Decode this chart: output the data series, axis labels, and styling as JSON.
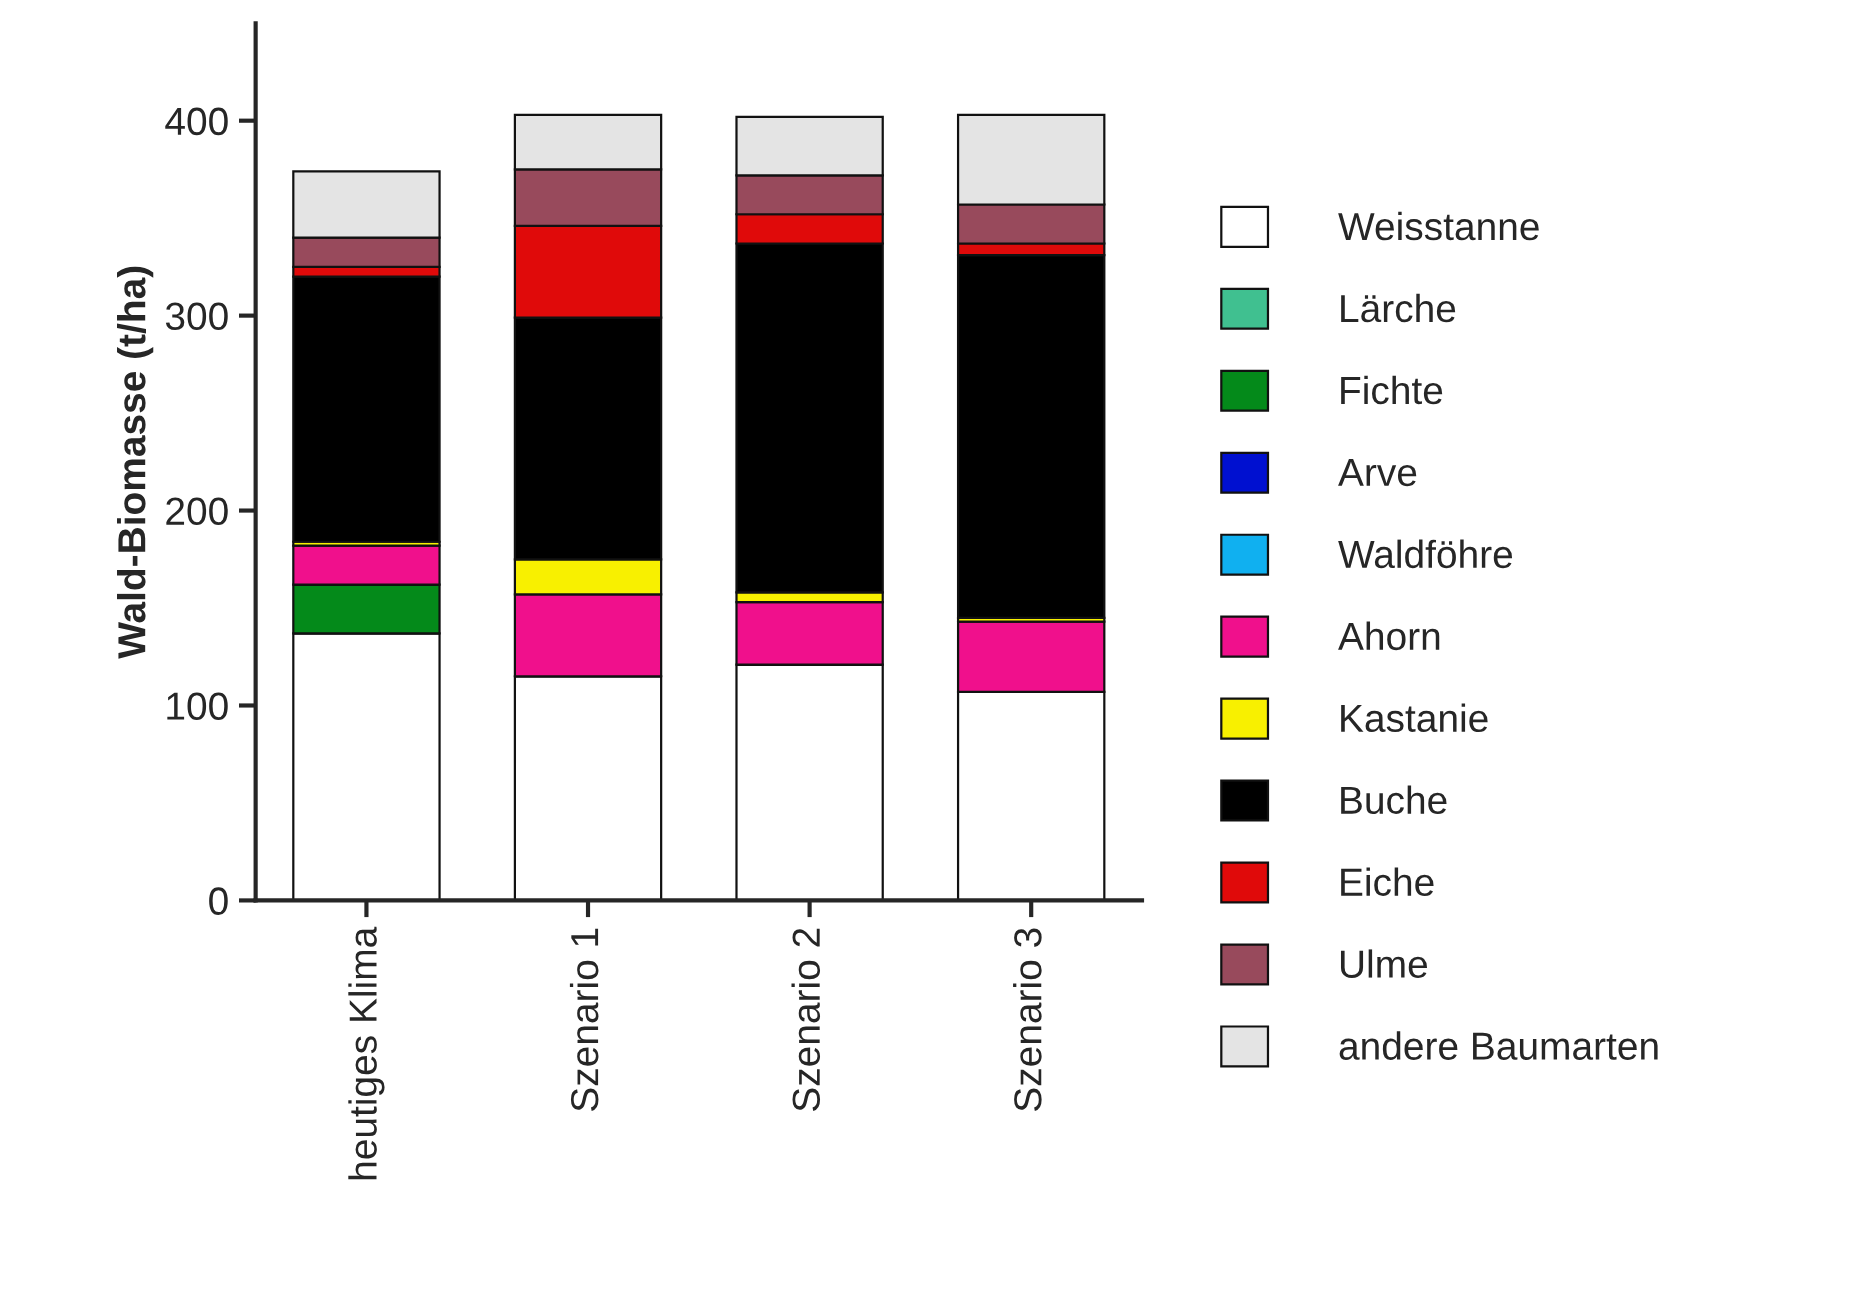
{
  "chart_data": {
    "type": "bar",
    "stacked": true,
    "ylabel": "Wald-Biomasse (t/ha)",
    "categories": [
      "heutiges Klima",
      "Szenario 1",
      "Szenario 2",
      "Szenario 3"
    ],
    "series": [
      {
        "name": "Weisstanne",
        "color": "#ffffff",
        "values": [
          137,
          115,
          121,
          107
        ]
      },
      {
        "name": "Lärche",
        "color": "#40c090",
        "values": [
          0,
          0,
          0,
          0
        ]
      },
      {
        "name": "Fichte",
        "color": "#048a1a",
        "values": [
          25,
          0,
          0,
          0
        ]
      },
      {
        "name": "Arve",
        "color": "#0010d0",
        "values": [
          0,
          0,
          0,
          0
        ]
      },
      {
        "name": "Waldföhre",
        "color": "#10b0f0",
        "values": [
          0,
          0,
          0,
          0
        ]
      },
      {
        "name": "Ahorn",
        "color": "#f0108c",
        "values": [
          20,
          42,
          32,
          36
        ]
      },
      {
        "name": "Kastanie",
        "color": "#f8f000",
        "values": [
          2,
          18,
          5,
          2
        ]
      },
      {
        "name": "Buche",
        "color": "#000000",
        "values": [
          136,
          124,
          179,
          186
        ]
      },
      {
        "name": "Eiche",
        "color": "#e00a0a",
        "values": [
          5,
          47,
          15,
          6
        ]
      },
      {
        "name": "Ulme",
        "color": "#984a5c",
        "values": [
          15,
          29,
          20,
          20
        ]
      },
      {
        "name": "andere Baumarten",
        "color": "#e4e4e4",
        "values": [
          34,
          28,
          30,
          46
        ]
      }
    ],
    "ylim": [
      0,
      450
    ],
    "yticks": [
      0,
      100,
      200,
      300,
      400
    ],
    "grid": false,
    "legend": "right"
  }
}
